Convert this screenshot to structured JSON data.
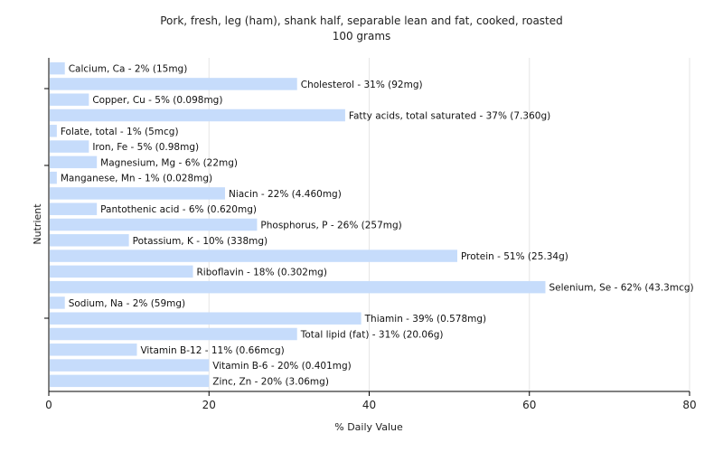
{
  "chart_data": {
    "type": "bar",
    "orientation": "horizontal",
    "title": "Pork, fresh, leg (ham), shank half, separable lean and fat, cooked, roasted",
    "subtitle": "100 grams",
    "xlabel": "% Daily Value",
    "ylabel": "Nutrient",
    "xlim": [
      0,
      80
    ],
    "xticks": [
      "0",
      "20",
      "40",
      "60",
      "80"
    ],
    "grid": true,
    "bar_color": "#c6dcfb",
    "categories": [
      "Calcium, Ca",
      "Cholesterol",
      "Copper, Cu",
      "Fatty acids, total saturated",
      "Folate, total",
      "Iron, Fe",
      "Magnesium, Mg",
      "Manganese, Mn",
      "Niacin",
      "Pantothenic acid",
      "Phosphorus, P",
      "Potassium, K",
      "Protein",
      "Riboflavin",
      "Selenium, Se",
      "Sodium, Na",
      "Thiamin",
      "Total lipid (fat)",
      "Vitamin B-12",
      "Vitamin B-6",
      "Zinc, Zn"
    ],
    "values": [
      2,
      31,
      5,
      37,
      1,
      5,
      6,
      1,
      22,
      6,
      26,
      10,
      51,
      18,
      62,
      2,
      39,
      31,
      11,
      20,
      20
    ],
    "labels": [
      "Calcium, Ca - 2% (15mg)",
      "Cholesterol - 31% (92mg)",
      "Copper, Cu - 5% (0.098mg)",
      "Fatty acids, total saturated - 37% (7.360g)",
      "Folate, total - 1% (5mcg)",
      "Iron, Fe - 5% (0.98mg)",
      "Magnesium, Mg - 6% (22mg)",
      "Manganese, Mn - 1% (0.028mg)",
      "Niacin - 22% (4.460mg)",
      "Pantothenic acid - 6% (0.620mg)",
      "Phosphorus, P - 26% (257mg)",
      "Potassium, K - 10% (338mg)",
      "Protein - 51% (25.34g)",
      "Riboflavin - 18% (0.302mg)",
      "Selenium, Se - 62% (43.3mcg)",
      "Sodium, Na - 2% (59mg)",
      "Thiamin - 39% (0.578mg)",
      "Total lipid (fat) - 31% (20.06g)",
      "Vitamin B-12 - 11% (0.66mcg)",
      "Vitamin B-6 - 20% (0.401mg)",
      "Zinc, Zn - 20% (3.06mg)"
    ]
  }
}
